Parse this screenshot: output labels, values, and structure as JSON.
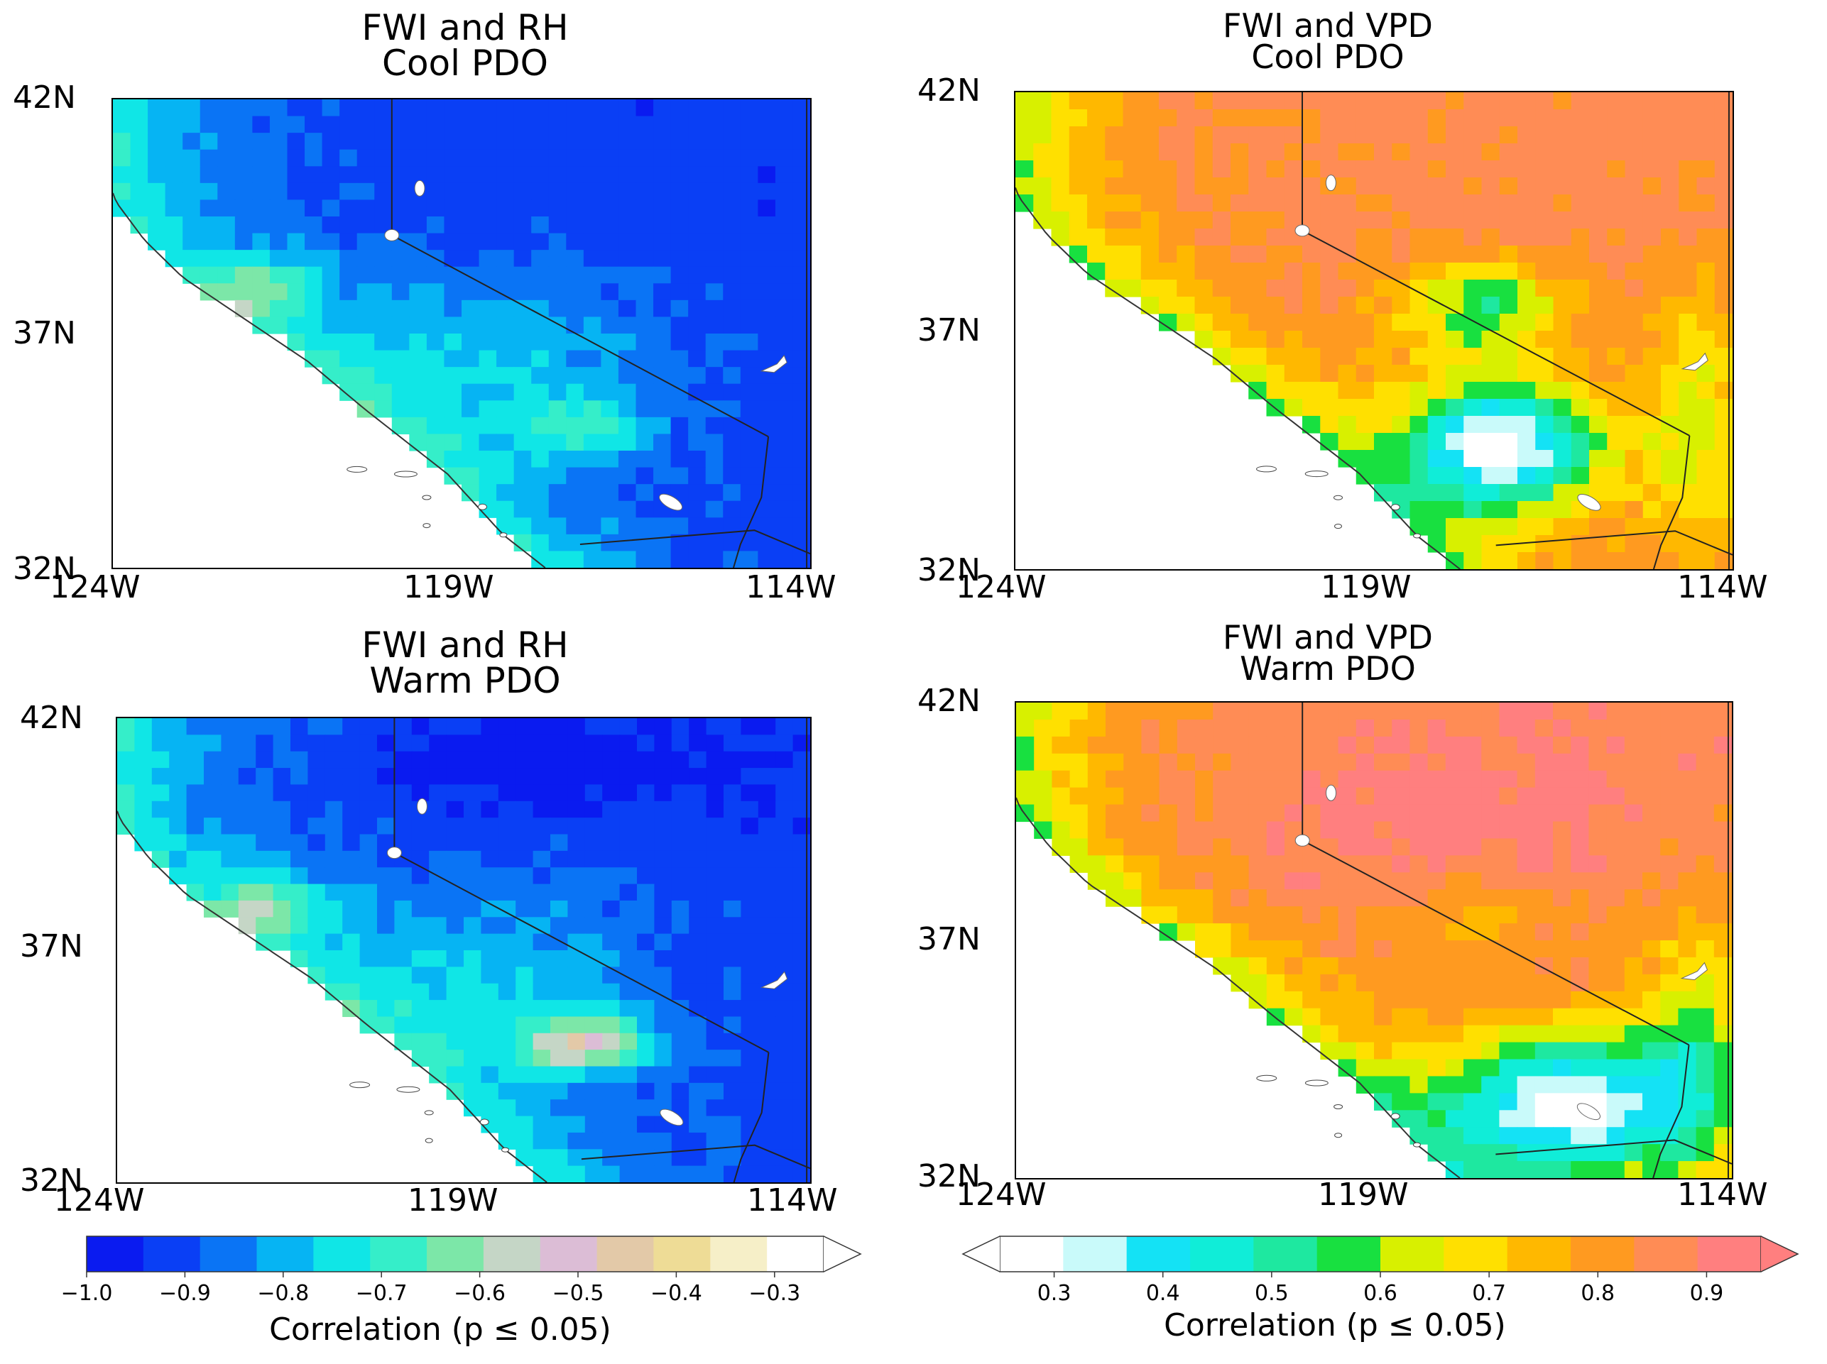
{
  "panels": [
    {
      "id": "rh-cool",
      "title_line1": "FWI and RH",
      "title_line2": "Cool PDO",
      "variable": "rh",
      "regime": "cool"
    },
    {
      "id": "vpd-cool",
      "title_line1": "FWI and VPD",
      "title_line2": "Cool PDO",
      "variable": "vpd",
      "regime": "cool"
    },
    {
      "id": "rh-warm",
      "title_line1": "FWI and RH",
      "title_line2": "Warm PDO",
      "variable": "rh",
      "regime": "warm"
    },
    {
      "id": "vpd-warm",
      "title_line1": "FWI and VPD",
      "title_line2": "Warm PDO",
      "variable": "vpd",
      "regime": "warm"
    }
  ],
  "axes": {
    "lat_labels": [
      "42N",
      "37N",
      "32N"
    ],
    "lon_labels": [
      "124W",
      "119W",
      "114W"
    ],
    "extent": {
      "lon": [
        -124,
        -114
      ],
      "lat": [
        32,
        42
      ]
    }
  },
  "colorbars": {
    "rh": {
      "label": "Correlation (p ≤ 0.05)",
      "ticks": [
        "−1.0",
        "−0.9",
        "−0.8",
        "−0.7",
        "−0.6",
        "−0.5",
        "−0.4",
        "−0.3"
      ],
      "range": [
        -1.0,
        -0.25
      ],
      "extend": "max",
      "colors": [
        "#0a1bf0",
        "#0a3ff5",
        "#0a74f5",
        "#06b4f3",
        "#10e6e6",
        "#35eec9",
        "#7ce7a8",
        "#c5d6c6",
        "#dcbdd6",
        "#e3c9a8",
        "#eedc96",
        "#f6efc8",
        "#ffffff"
      ]
    },
    "vpd": {
      "label": "Correlation (p ≤ 0.05)",
      "ticks": [
        "0.3",
        "0.4",
        "0.5",
        "0.6",
        "0.7",
        "0.8",
        "0.9"
      ],
      "range": [
        0.25,
        0.95
      ],
      "extend": "both",
      "colors": [
        "#ffffff",
        "#c9fafa",
        "#14e2f5",
        "#10edd8",
        "#1ee8a0",
        "#18e040",
        "#d8f000",
        "#ffe000",
        "#ffb800",
        "#ff9a20",
        "#ff8c55",
        "#ff7f7f"
      ]
    }
  },
  "geo_features": [
    "coastline",
    "state-border-ca-nv",
    "state-border-ca-az",
    "mexico-border",
    "lake-tahoe",
    "great-salt-lake",
    "salton-sea",
    "channel-islands"
  ]
}
